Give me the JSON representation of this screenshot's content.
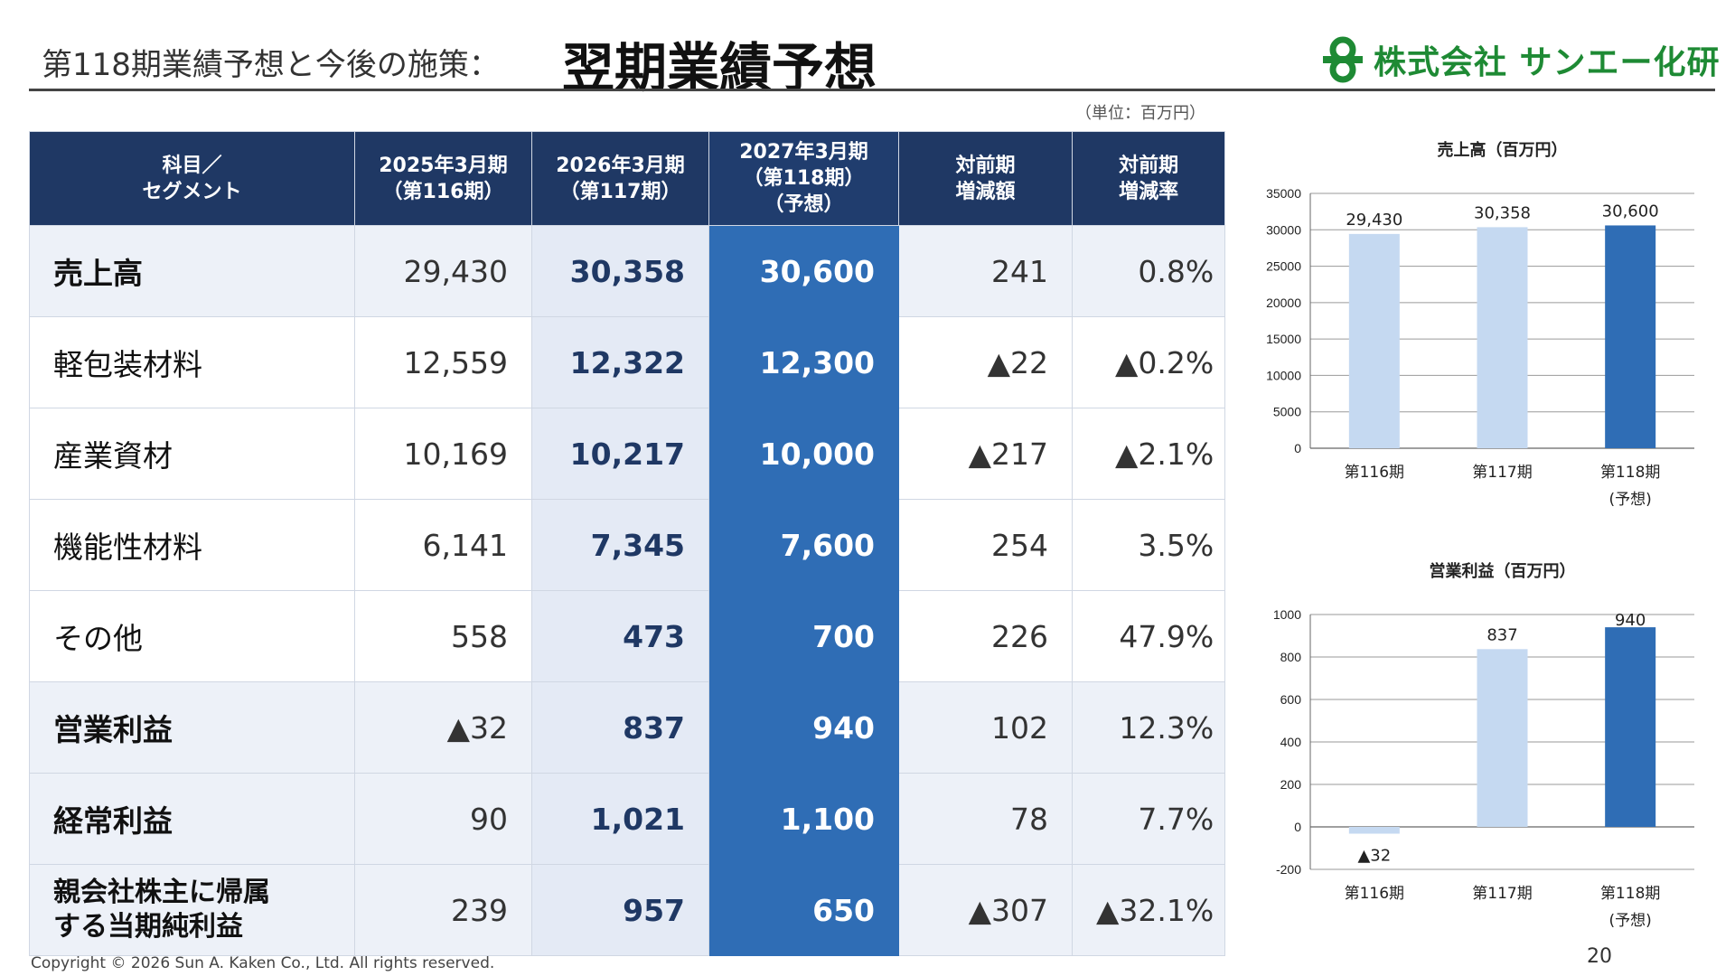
{
  "header": {
    "subtitle": "第118期業績予想と今後の施策：",
    "title": "翌期業績予想",
    "logo_text": "株式会社 サンエー化研",
    "unit_note": "（単位：百万円）"
  },
  "table": {
    "headers": [
      "科目／\nセグメント",
      "2025年3月期\n（第116期）",
      "2026年3月期\n（第117期）",
      "2027年3月期\n（第118期）\n（予想）",
      "対前期\n増減額",
      "対前期\n増減率"
    ],
    "rows": [
      {
        "item": "売上高",
        "fy2025": "29,430",
        "fy2026": "30,358",
        "fy2027": "30,600",
        "diff": "241",
        "rate": "0.8%"
      },
      {
        "item": "軽包装材料",
        "fy2025": "12,559",
        "fy2026": "12,322",
        "fy2027": "12,300",
        "diff": "▲22",
        "rate": "▲0.2%"
      },
      {
        "item": "産業資材",
        "fy2025": "10,169",
        "fy2026": "10,217",
        "fy2027": "10,000",
        "diff": "▲217",
        "rate": "▲2.1%"
      },
      {
        "item": "機能性材料",
        "fy2025": "6,141",
        "fy2026": "7,345",
        "fy2027": "7,600",
        "diff": "254",
        "rate": "3.5%"
      },
      {
        "item": "その他",
        "fy2025": "558",
        "fy2026": "473",
        "fy2027": "700",
        "diff": "226",
        "rate": "47.9%"
      },
      {
        "item": "営業利益",
        "fy2025": "▲32",
        "fy2026": "837",
        "fy2027": "940",
        "diff": "102",
        "rate": "12.3%"
      },
      {
        "item": "経常利益",
        "fy2025": "90",
        "fy2026": "1,021",
        "fy2027": "1,100",
        "diff": "78",
        "rate": "7.7%"
      },
      {
        "item": "親会社株主に帰属\nする当期純利益",
        "fy2025": "239",
        "fy2026": "957",
        "fy2027": "650",
        "diff": "▲307",
        "rate": "▲32.1%"
      }
    ]
  },
  "colors": {
    "header_navy": "#1f3864",
    "forecast_blue": "#2f6db5",
    "light_blue_bar": "#c5d9f1",
    "row_shade": "#edf1f8",
    "logo_green": "#1e8a34"
  },
  "chart_data": [
    {
      "type": "bar",
      "title": "売上高（百万円）",
      "categories": [
        "第116期",
        "第117期",
        "第118期\n(予想)"
      ],
      "values": [
        29430,
        30358,
        30600
      ],
      "data_labels": [
        "29,430",
        "30,358",
        "30,600"
      ],
      "ylim": [
        0,
        35000
      ],
      "yticks": [
        0,
        5000,
        10000,
        15000,
        20000,
        25000,
        30000,
        35000
      ],
      "grid": true,
      "bar_colors": [
        "#c5d9f1",
        "#c5d9f1",
        "#2f6db5"
      ]
    },
    {
      "type": "bar",
      "title": "営業利益（百万円）",
      "categories": [
        "第116期",
        "第117期",
        "第118期\n(予想)"
      ],
      "values": [
        -32,
        837,
        940
      ],
      "data_labels": [
        "▲32",
        "837",
        "940"
      ],
      "ylim": [
        -200,
        1000
      ],
      "yticks": [
        -200,
        0,
        200,
        400,
        600,
        800,
        1000
      ],
      "grid": true,
      "bar_colors": [
        "#c5d9f1",
        "#c5d9f1",
        "#2f6db5"
      ]
    }
  ],
  "footer": {
    "copyright": "Copyright  © 2026 Sun A. Kaken Co., Ltd. All rights reserved.",
    "page_number": "20"
  }
}
